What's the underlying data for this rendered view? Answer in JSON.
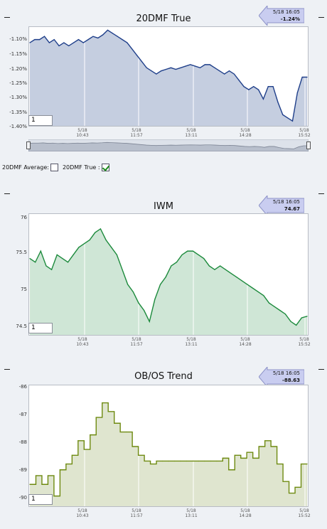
{
  "charts": [
    {
      "title": "20DMF True",
      "badge": {
        "date": "5/18 16:05",
        "value": "-1.24%"
      },
      "yticks": [
        "-1.10%",
        "-1.15%",
        "-1.20%",
        "-1.25%",
        "-1.30%",
        "-1.35%",
        "-1.40%"
      ],
      "xticks": [
        {
          "date": "5/18",
          "time": "10:43"
        },
        {
          "date": "5/18",
          "time": "11:57"
        },
        {
          "date": "5/18",
          "time": "13:11"
        },
        {
          "date": "5/18",
          "time": "14:28"
        },
        {
          "date": "5/18",
          "time": "15:52"
        }
      ],
      "input_value": "1",
      "colors": {
        "line": "#1f3f8a",
        "fill": "#c5cee0",
        "badge": "#c9cdf0"
      }
    },
    {
      "title": "IWM",
      "badge": {
        "date": "5/18 16:05",
        "value": "74.67"
      },
      "yticks": [
        "76",
        "75.5",
        "75",
        "74.5"
      ],
      "xticks": [
        {
          "date": "5/18",
          "time": "10:43"
        },
        {
          "date": "5/18",
          "time": "11:57"
        },
        {
          "date": "5/18",
          "time": "13:11"
        },
        {
          "date": "5/18",
          "time": "14:28"
        },
        {
          "date": "5/18",
          "time": "15:52"
        }
      ],
      "input_value": "1",
      "colors": {
        "line": "#1c8a3c",
        "fill": "#cfe6d6",
        "badge": "#c9cdf0"
      }
    },
    {
      "title": "OB/OS Trend",
      "badge": {
        "date": "5/18 16:05",
        "value": "-88.63"
      },
      "yticks": [
        "-86",
        "-87",
        "-88",
        "-89",
        "-90"
      ],
      "xticks": [
        {
          "date": "5/18",
          "time": "10:43"
        },
        {
          "date": "5/18",
          "time": "11:57"
        },
        {
          "date": "5/18",
          "time": "13:11"
        },
        {
          "date": "5/18",
          "time": "14:28"
        },
        {
          "date": "5/18",
          "time": "15:52"
        }
      ],
      "input_value": "1",
      "colors": {
        "line": "#6e8a10",
        "fill": "#dfe5cf",
        "badge": "#c9cdf0"
      }
    }
  ],
  "legend": {
    "average_label": "20DMF Average:",
    "true_label": "20DMF True :",
    "average_checked": false,
    "true_checked": true
  },
  "chart_data": [
    {
      "type": "line",
      "title": "20DMF True",
      "ylim": [
        -1.4,
        -1.08
      ],
      "values": [
        -1.13,
        -1.12,
        -1.12,
        -1.11,
        -1.13,
        -1.12,
        -1.14,
        -1.13,
        -1.14,
        -1.13,
        -1.12,
        -1.13,
        -1.12,
        -1.11,
        -1.115,
        -1.105,
        -1.09,
        -1.1,
        -1.11,
        -1.12,
        -1.13,
        -1.15,
        -1.17,
        -1.19,
        -1.21,
        -1.22,
        -1.23,
        -1.22,
        -1.215,
        -1.21,
        -1.215,
        -1.21,
        -1.205,
        -1.2,
        -1.205,
        -1.21,
        -1.2,
        -1.2,
        -1.21,
        -1.22,
        -1.23,
        -1.22,
        -1.23,
        -1.25,
        -1.27,
        -1.28,
        -1.27,
        -1.28,
        -1.31,
        -1.27,
        -1.27,
        -1.32,
        -1.36,
        -1.37,
        -1.38,
        -1.29,
        -1.24,
        -1.24
      ]
    },
    {
      "type": "line",
      "title": "IWM",
      "ylim": [
        74.4,
        76.05
      ],
      "values": [
        75.45,
        75.4,
        75.55,
        75.35,
        75.3,
        75.5,
        75.45,
        75.4,
        75.5,
        75.6,
        75.65,
        75.7,
        75.8,
        75.85,
        75.7,
        75.6,
        75.5,
        75.3,
        75.1,
        75.0,
        74.85,
        74.75,
        74.6,
        74.9,
        75.1,
        75.2,
        75.35,
        75.4,
        75.5,
        75.55,
        75.55,
        75.5,
        75.45,
        75.35,
        75.3,
        75.35,
        75.3,
        75.25,
        75.2,
        75.15,
        75.1,
        75.05,
        75.0,
        74.95,
        74.85,
        74.8,
        74.75,
        74.7,
        74.6,
        74.55,
        74.65,
        74.67
      ]
    },
    {
      "type": "line",
      "title": "OB/OS Trend",
      "ylim": [
        -90.1,
        -85.9
      ],
      "values": [
        -89.3,
        -89.0,
        -89.3,
        -89.0,
        -89.7,
        -88.8,
        -88.6,
        -88.3,
        -87.8,
        -88.1,
        -87.6,
        -87.0,
        -86.5,
        -86.8,
        -87.2,
        -87.5,
        -87.5,
        -88.0,
        -88.3,
        -88.5,
        -88.6,
        -88.5,
        -88.5,
        -88.5,
        -88.5,
        -88.5,
        -88.5,
        -88.5,
        -88.5,
        -88.5,
        -88.5,
        -88.5,
        -88.4,
        -88.8,
        -88.3,
        -88.4,
        -88.2,
        -88.4,
        -88.0,
        -87.8,
        -88.0,
        -88.6,
        -89.2,
        -89.6,
        -89.4,
        -88.6,
        -88.6
      ]
    }
  ]
}
